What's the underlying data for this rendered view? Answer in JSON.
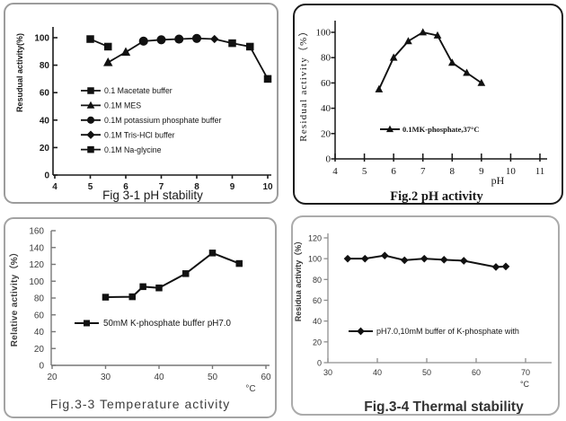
{
  "page": {
    "background": "#ffffff",
    "ink": "#1a1a1a"
  },
  "chart_data": [
    {
      "id": "fig3_1",
      "type": "line",
      "title": "Fig 3-1 pH stability",
      "ylabel": "Resudual activity(%)",
      "xlabel": "",
      "xlim": [
        4,
        10
      ],
      "ylim": [
        0,
        100
      ],
      "xtick_values": [
        4,
        5,
        6,
        7,
        8,
        9,
        10
      ],
      "ytick_values": [
        0,
        20,
        40,
        60,
        80,
        100
      ],
      "grid": false,
      "legend_position": "inside-left-middle",
      "series": [
        {
          "name": "0.1 Macetate buffer",
          "marker": "square",
          "chain": "a",
          "size": 8.5,
          "x": [
            5,
            5.5
          ],
          "y": [
            99,
            93.5
          ]
        },
        {
          "name": "0.1M MES",
          "marker": "triangle",
          "chain": "b",
          "size": 9,
          "x": [
            5.5,
            6
          ],
          "y": [
            82,
            89.5
          ]
        },
        {
          "name": "0.1M potassium phosphate buffer",
          "marker": "circle",
          "chain": "b",
          "size": 9.5,
          "x": [
            6.5,
            7,
            7.5,
            8
          ],
          "y": [
            97.5,
            98.5,
            99,
            99.5
          ]
        },
        {
          "name": "0.1M Tris-HCl buffer",
          "marker": "diamond",
          "chain": "b",
          "size": 7.5,
          "x": [
            8.5
          ],
          "y": [
            99
          ]
        },
        {
          "name": "0.1M Na-glycine",
          "marker": "square",
          "chain": "b",
          "size": 8.5,
          "x": [
            9,
            9.5,
            10
          ],
          "y": [
            96,
            93.5,
            70
          ]
        }
      ]
    },
    {
      "id": "fig2",
      "type": "line",
      "title": "Fig.2 pH activity",
      "ylabel": "Residual activity（%）",
      "xlabel": "pH",
      "xlim": [
        4,
        11
      ],
      "ylim": [
        0,
        100
      ],
      "xtick_values": [
        4,
        5,
        6,
        7,
        8,
        9,
        10,
        11
      ],
      "ytick_values": [
        0,
        20,
        40,
        60,
        80,
        100
      ],
      "grid": false,
      "legend_position": "inside-center",
      "series": [
        {
          "name": "0.1MK-phosphate,37°C",
          "marker": "triangle",
          "chain": "a",
          "size": 7.5,
          "x": [
            5.5,
            6,
            6.5,
            7,
            7.5,
            8,
            8.5,
            9
          ],
          "y": [
            55,
            80,
            93,
            100,
            97.5,
            76,
            68,
            60
          ]
        }
      ]
    },
    {
      "id": "fig3_3",
      "type": "line",
      "title": "Fig.3-3 Temperature  activity",
      "ylabel": "Relative  activity（%）",
      "xlabel": "°C",
      "xlim": [
        20,
        60
      ],
      "ylim": [
        0,
        160
      ],
      "xtick_values": [
        20,
        30,
        40,
        50,
        60
      ],
      "ytick_values": [
        0,
        20,
        40,
        60,
        80,
        100,
        120,
        140,
        160
      ],
      "grid": false,
      "legend_position": "inside-center",
      "series": [
        {
          "name": "50mM K-phosphate buffer pH7.0",
          "marker": "square",
          "chain": "a",
          "size": 7.5,
          "x": [
            30,
            35,
            37,
            40,
            45,
            50,
            55
          ],
          "y": [
            81,
            81.5,
            93.5,
            92,
            109,
            133.5,
            121
          ]
        }
      ]
    },
    {
      "id": "fig3_4",
      "type": "line",
      "title": "Fig.3-4 Thermal stability",
      "ylabel": "Residua  activity（%）",
      "xlabel": "°C",
      "xlim": [
        30,
        70
      ],
      "ylim": [
        0,
        120
      ],
      "xtick_values": [
        30,
        40,
        50,
        60,
        70
      ],
      "ytick_values": [
        0,
        20,
        40,
        60,
        80,
        100,
        120
      ],
      "grid": false,
      "legend_position": "inside-center",
      "series": [
        {
          "name": "pH7.0,10mM buffer of K-phosphate with",
          "marker": "diamond",
          "chain": "a",
          "size": 7,
          "x": [
            34,
            37.5,
            41.5,
            45.5,
            49.5,
            53.5,
            57.5,
            64,
            66
          ],
          "y": [
            100,
            100,
            103,
            98.5,
            100,
            99,
            98,
            92,
            92.5
          ]
        }
      ]
    }
  ]
}
